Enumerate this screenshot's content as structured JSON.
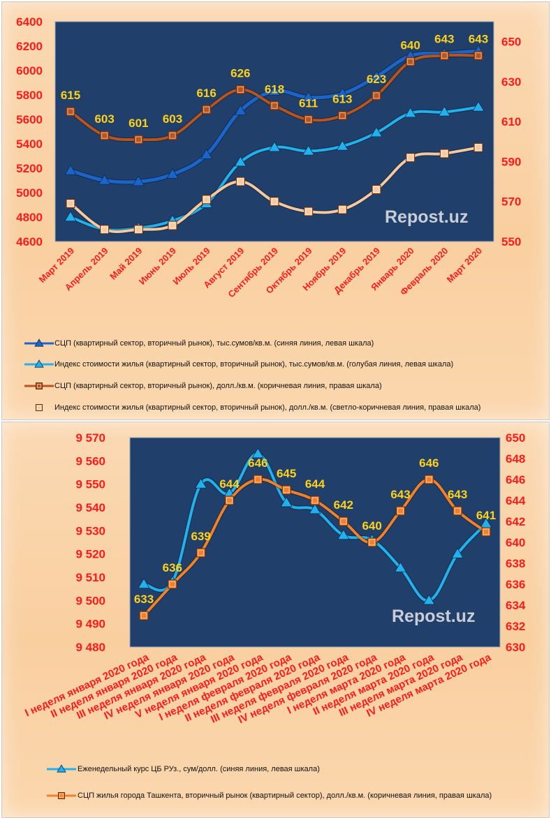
{
  "colors": {
    "plot_bg": "#203f6b",
    "blue": "#1b64c9",
    "light_blue": "#21b1ec",
    "brown": "#b8551e",
    "light_brown": "#f5c9a0",
    "orange": "#f0812a",
    "tick_red": "#ff1a1a",
    "label_yellow": "#ffd21a"
  },
  "chart_data": [
    {
      "type": "line",
      "watermark": "Repost.uz",
      "categories": [
        "Март 2019",
        "Апрель 2019",
        "Май 2019",
        "Июнь 2019",
        "Июль 2019",
        "Август 2019",
        "Сентябрь 2019",
        "Октябрь 2019",
        "Ноябрь 2019",
        "Декабрь 2019",
        "Январь 2020",
        "Февраль 2020",
        "Март 2020"
      ],
      "y_left": {
        "min": 4600,
        "max": 6400,
        "step": 200,
        "ticks": [
          "4600",
          "4800",
          "5000",
          "5200",
          "5400",
          "5600",
          "5800",
          "6000",
          "6200",
          "6400"
        ]
      },
      "y_right": {
        "min": 550,
        "max": 660,
        "step": 20,
        "ticks": [
          "550",
          "570",
          "590",
          "610",
          "630",
          "650"
        ]
      },
      "grid": false,
      "legend_position": "bottom",
      "series": [
        {
          "name": "СЦП (квартирный сектор,  вторичный рынок), тыс.сумов/кв.м.  (синяя линия,  левая шкала)",
          "axis": "left",
          "color": "#1b64c9",
          "marker": "triangle",
          "width": 5,
          "values": [
            5180,
            5100,
            5090,
            5150,
            5310,
            5670,
            5830,
            5780,
            5810,
            5950,
            6120,
            6140,
            6160
          ]
        },
        {
          "name": "Индекс стоимости жилья (квартирный сектор, вторичный рынок),  тыс.сумов/кв.м. (голубая линия,  левая шкала)",
          "axis": "left",
          "color": "#21b1ec",
          "marker": "triangle",
          "width": 4,
          "values": [
            4800,
            4700,
            4710,
            4770,
            4910,
            5250,
            5370,
            5340,
            5380,
            5490,
            5650,
            5660,
            5700
          ]
        },
        {
          "name": "СЦП (квартирный сектор,  вторичный рынок),  долл./кв.м.  (коричневая линия, правая  шкала)",
          "axis": "right",
          "color": "#b8551e",
          "marker": "square",
          "width": 4,
          "values": [
            615,
            603,
            601,
            603,
            616,
            626,
            618,
            611,
            613,
            623,
            640,
            643,
            643
          ],
          "labels": [
            "615",
            "603",
            "601",
            "603",
            "616",
            "626",
            "618",
            "611",
            "613",
            "623",
            "640",
            "643",
            "643"
          ]
        },
        {
          "name": "Индекс стоимости жилья (квартирный сектор, вторичный рынок),  долл./кв.м.  (светло-коричневая  линия,  правая  шкала)",
          "axis": "right",
          "color": "#f5c9a0",
          "marker": "square",
          "width": 4,
          "values": [
            569,
            556,
            556,
            558,
            571,
            580,
            570,
            565,
            566,
            576,
            592,
            594,
            597
          ]
        }
      ]
    },
    {
      "type": "line",
      "watermark": "Repost.uz",
      "categories": [
        "I неделя января 2020 года",
        "II неделя января 2020 года",
        "III неделя января 2020 года",
        "IV неделя января 2020 года",
        "V неделя января 2020 года",
        "I неделя февраля 2020 года",
        "II неделя февраля 2020 года",
        "III неделя февраля 2020 года",
        "IV неделя февраля 2020 года",
        "I неделя марта 2020 года",
        "II неделя марта 2020 года",
        "III неделя марта 2020 года",
        "IV неделя марта 2020 года"
      ],
      "y_left": {
        "min": 9480,
        "max": 9570,
        "step": 10,
        "ticks": [
          "9 480",
          "9 490",
          "9 500",
          "9 510",
          "9 520",
          "9 530",
          "9 540",
          "9 550",
          "9 560",
          "9 570"
        ]
      },
      "y_right": {
        "min": 630,
        "max": 650,
        "step": 2,
        "ticks": [
          "630",
          "632",
          "634",
          "636",
          "638",
          "640",
          "642",
          "644",
          "646",
          "648",
          "650"
        ]
      },
      "grid": false,
      "legend_position": "bottom",
      "series": [
        {
          "name": "Еженедельный курс ЦБ РУз., сум/долл.  (синяя линия, левая шкала)",
          "axis": "left",
          "color": "#21b1ec",
          "marker": "triangle",
          "width": 4,
          "values": [
            9507,
            9508,
            9550,
            9546,
            9563,
            9542,
            9539,
            9528,
            9526,
            9514,
            9500,
            9520,
            9533
          ]
        },
        {
          "name": "СЦП жилья города  Ташкента, вторичный рынок (квартирный сектор),  долл./кв.м.  (коричневая линия, правая шкала)",
          "axis": "right",
          "color": "#f0812a",
          "marker": "square",
          "width": 4,
          "values": [
            633,
            636,
            639,
            644,
            646,
            645,
            644,
            642,
            640,
            643,
            646,
            643,
            641
          ],
          "labels": [
            "633",
            "636",
            "639",
            "644",
            "646",
            "645",
            "644",
            "642",
            "640",
            "643",
            "646",
            "643",
            "641"
          ]
        }
      ]
    }
  ]
}
